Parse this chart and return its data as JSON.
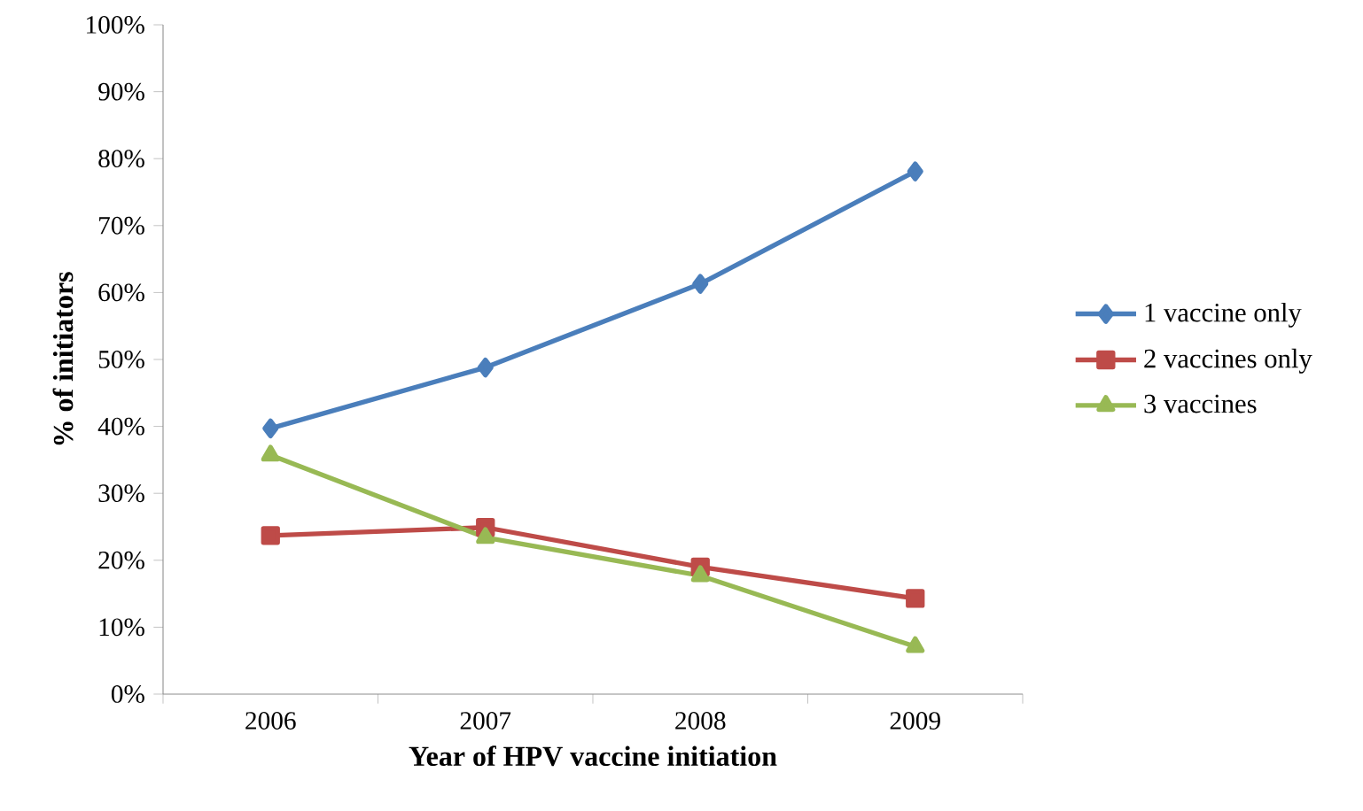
{
  "chart_data": {
    "type": "line",
    "xlabel": "Year of HPV vaccine initiation",
    "ylabel": "% of initiators",
    "categories": [
      "2006",
      "2007",
      "2008",
      "2009"
    ],
    "series": [
      {
        "name": "1 vaccine only",
        "color": "#4a7ebb",
        "marker": "diamond",
        "values": [
          39.7,
          48.8,
          61.3,
          78.1
        ]
      },
      {
        "name": "2 vaccines only",
        "color": "#be4b48",
        "marker": "square",
        "values": [
          23.7,
          24.9,
          19.0,
          14.3
        ]
      },
      {
        "name": "3 vaccines",
        "color": "#98b954",
        "marker": "triangle",
        "values": [
          35.7,
          23.4,
          17.7,
          7.1
        ]
      }
    ],
    "ylim": [
      0,
      100
    ],
    "yticks": [
      {
        "value": 0,
        "label": "0%"
      },
      {
        "value": 10,
        "label": "10%"
      },
      {
        "value": 20,
        "label": "20%"
      },
      {
        "value": 30,
        "label": "30%"
      },
      {
        "value": 40,
        "label": "40%"
      },
      {
        "value": 50,
        "label": "50%"
      },
      {
        "value": 60,
        "label": "60%"
      },
      {
        "value": 70,
        "label": "70%"
      },
      {
        "value": 80,
        "label": "80%"
      },
      {
        "value": 90,
        "label": "90%"
      },
      {
        "value": 100,
        "label": "100%"
      }
    ],
    "grid": false,
    "legend": "right",
    "line_style": "solid"
  }
}
